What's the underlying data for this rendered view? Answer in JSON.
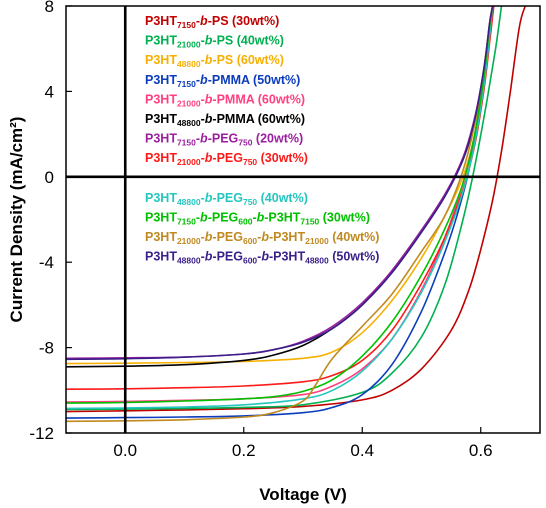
{
  "chart_data": {
    "type": "line",
    "title": "",
    "xlabel": "Voltage (V)",
    "ylabel": "Current Density (mA/cm²)",
    "xlim": [
      -0.1,
      0.7
    ],
    "ylim": [
      -12,
      8
    ],
    "x_ticks": [
      "0.0",
      "0.2",
      "0.4",
      "0.6"
    ],
    "y_ticks": [
      "-12",
      "-8",
      "-4",
      "0",
      "4",
      "8"
    ],
    "grid": false,
    "legend_position": "upper-left inside",
    "series": [
      {
        "name": "P3HT7150-b-PS (30wt%)",
        "color": "#c00000",
        "legend": [
          {
            "t": "P3HT"
          },
          {
            "t": "7150",
            "sub": true
          },
          {
            "t": "-"
          },
          {
            "t": "b",
            "i": true
          },
          {
            "t": "-PS (30wt%)"
          }
        ],
        "points": [
          [
            -0.1,
            -11.0
          ],
          [
            0.0,
            -10.96
          ],
          [
            0.1,
            -10.92
          ],
          [
            0.2,
            -10.86
          ],
          [
            0.3,
            -10.76
          ],
          [
            0.4,
            -10.45
          ],
          [
            0.45,
            -10.0
          ],
          [
            0.5,
            -9.0
          ],
          [
            0.55,
            -7.2
          ],
          [
            0.58,
            -5.3
          ],
          [
            0.6,
            -3.4
          ],
          [
            0.62,
            -1.1
          ],
          [
            0.635,
            1.2
          ],
          [
            0.65,
            4.0
          ],
          [
            0.665,
            7.0
          ],
          [
            0.675,
            8.0
          ]
        ]
      },
      {
        "name": "P3HT21000-b-PS (40wt%)",
        "color": "#00b050",
        "legend": [
          {
            "t": "P3HT"
          },
          {
            "t": "21000",
            "sub": true
          },
          {
            "t": "-"
          },
          {
            "t": "b",
            "i": true
          },
          {
            "t": "-PS (40wt%)"
          }
        ],
        "points": [
          [
            -0.1,
            -10.9
          ],
          [
            0.0,
            -10.88
          ],
          [
            0.1,
            -10.85
          ],
          [
            0.2,
            -10.8
          ],
          [
            0.3,
            -10.68
          ],
          [
            0.4,
            -10.1
          ],
          [
            0.45,
            -9.2
          ],
          [
            0.5,
            -7.5
          ],
          [
            0.54,
            -5.0
          ],
          [
            0.57,
            -2.0
          ],
          [
            0.59,
            0.5
          ],
          [
            0.61,
            3.5
          ],
          [
            0.625,
            6.0
          ],
          [
            0.635,
            8.0
          ]
        ]
      },
      {
        "name": "P3HT48800-b-PS (60wt%)",
        "color": "#f7b000",
        "legend": [
          {
            "t": "P3HT"
          },
          {
            "t": "48800",
            "sub": true
          },
          {
            "t": "-"
          },
          {
            "t": "b",
            "i": true
          },
          {
            "t": "-PS (60wt%)"
          }
        ],
        "points": [
          [
            -0.1,
            -8.75
          ],
          [
            0.0,
            -8.73
          ],
          [
            0.1,
            -8.7
          ],
          [
            0.2,
            -8.65
          ],
          [
            0.3,
            -8.5
          ],
          [
            0.35,
            -8.2
          ],
          [
            0.4,
            -7.3
          ],
          [
            0.45,
            -5.8
          ],
          [
            0.5,
            -3.8
          ],
          [
            0.54,
            -1.8
          ],
          [
            0.57,
            0.0
          ],
          [
            0.59,
            2.0
          ],
          [
            0.605,
            4.5
          ],
          [
            0.615,
            7.0
          ],
          [
            0.62,
            8.0
          ]
        ]
      },
      {
        "name": "P3HT7150-b-PMMA (50wt%)",
        "color": "#0b3cbd",
        "legend": [
          {
            "t": "P3HT"
          },
          {
            "t": "7150",
            "sub": true
          },
          {
            "t": "-"
          },
          {
            "t": "b",
            "i": true
          },
          {
            "t": "-PMMA (50wt%)"
          }
        ],
        "points": [
          [
            -0.1,
            -11.3
          ],
          [
            0.0,
            -11.28
          ],
          [
            0.1,
            -11.25
          ],
          [
            0.2,
            -11.2
          ],
          [
            0.3,
            -11.05
          ],
          [
            0.35,
            -10.8
          ],
          [
            0.4,
            -10.2
          ],
          [
            0.45,
            -8.8
          ],
          [
            0.5,
            -6.3
          ],
          [
            0.54,
            -3.5
          ],
          [
            0.56,
            -1.8
          ],
          [
            0.58,
            0.3
          ],
          [
            0.595,
            2.8
          ],
          [
            0.61,
            5.5
          ],
          [
            0.62,
            8.0
          ]
        ]
      },
      {
        "name": "P3HT21000-b-PMMA (60wt%)",
        "color": "#ff3f7f",
        "legend": [
          {
            "t": "P3HT"
          },
          {
            "t": "21000",
            "sub": true
          },
          {
            "t": "-"
          },
          {
            "t": "b",
            "i": true
          },
          {
            "t": "-PMMA (60wt%)"
          }
        ],
        "points": [
          [
            -0.1,
            -10.55
          ],
          [
            0.0,
            -10.52
          ],
          [
            0.1,
            -10.47
          ],
          [
            0.2,
            -10.4
          ],
          [
            0.3,
            -10.2
          ],
          [
            0.35,
            -9.8
          ],
          [
            0.4,
            -9.0
          ],
          [
            0.45,
            -7.6
          ],
          [
            0.5,
            -5.3
          ],
          [
            0.54,
            -2.8
          ],
          [
            0.57,
            -0.3
          ],
          [
            0.59,
            2.0
          ],
          [
            0.605,
            4.8
          ],
          [
            0.615,
            7.0
          ],
          [
            0.62,
            8.0
          ]
        ]
      },
      {
        "name": "P3HT48800-b-PMMA (60wt%)",
        "color": "#000000",
        "legend": [
          {
            "t": "P3HT"
          },
          {
            "t": "48800",
            "sub": true
          },
          {
            "t": "-"
          },
          {
            "t": "b",
            "i": true
          },
          {
            "t": "-PMMA (60wt%)"
          }
        ],
        "points": [
          [
            -0.1,
            -8.9
          ],
          [
            0.0,
            -8.87
          ],
          [
            0.1,
            -8.8
          ],
          [
            0.2,
            -8.6
          ],
          [
            0.25,
            -8.35
          ],
          [
            0.3,
            -7.9
          ],
          [
            0.35,
            -7.1
          ],
          [
            0.4,
            -6.0
          ],
          [
            0.45,
            -4.4
          ],
          [
            0.5,
            -2.5
          ],
          [
            0.54,
            -0.8
          ],
          [
            0.57,
            0.8
          ],
          [
            0.59,
            2.6
          ],
          [
            0.605,
            4.8
          ],
          [
            0.615,
            7.0
          ],
          [
            0.62,
            8.0
          ]
        ]
      },
      {
        "name": "P3HT7150-b-PEG750 (20wt%)",
        "color": "#9b1fa0",
        "legend": [
          {
            "t": "P3HT"
          },
          {
            "t": "7150",
            "sub": true
          },
          {
            "t": "-"
          },
          {
            "t": "b",
            "i": true
          },
          {
            "t": "-PEG"
          },
          {
            "t": "750",
            "sub": true
          },
          {
            "t": " (20wt%)"
          }
        ],
        "points": [
          [
            -0.1,
            -8.5
          ],
          [
            0.0,
            -8.48
          ],
          [
            0.1,
            -8.44
          ],
          [
            0.2,
            -8.3
          ],
          [
            0.25,
            -8.1
          ],
          [
            0.3,
            -7.7
          ],
          [
            0.35,
            -7.0
          ],
          [
            0.4,
            -5.9
          ],
          [
            0.45,
            -4.4
          ],
          [
            0.5,
            -2.5
          ],
          [
            0.54,
            -0.8
          ],
          [
            0.57,
            0.9
          ],
          [
            0.59,
            2.8
          ],
          [
            0.605,
            5.0
          ],
          [
            0.615,
            7.2
          ],
          [
            0.62,
            8.0
          ]
        ]
      },
      {
        "name": "P3HT21000-b-PEG750 (30wt%)",
        "color": "#ff1a1a",
        "legend": [
          {
            "t": "P3HT"
          },
          {
            "t": "21000",
            "sub": true
          },
          {
            "t": "-"
          },
          {
            "t": "b",
            "i": true
          },
          {
            "t": "-PEG"
          },
          {
            "t": "750",
            "sub": true
          },
          {
            "t": " (30wt%)"
          }
        ],
        "points": [
          [
            -0.1,
            -9.95
          ],
          [
            0.0,
            -9.93
          ],
          [
            0.1,
            -9.88
          ],
          [
            0.2,
            -9.8
          ],
          [
            0.3,
            -9.6
          ],
          [
            0.35,
            -9.3
          ],
          [
            0.4,
            -8.6
          ],
          [
            0.45,
            -7.2
          ],
          [
            0.5,
            -5.0
          ],
          [
            0.54,
            -2.8
          ],
          [
            0.57,
            -0.6
          ],
          [
            0.59,
            1.5
          ],
          [
            0.605,
            4.0
          ],
          [
            0.615,
            6.3
          ],
          [
            0.622,
            8.0
          ]
        ]
      },
      {
        "name": "P3HT48800-b-PEG750 (40wt%)",
        "color": "#26c6c0",
        "legend": [
          {
            "t": "P3HT"
          },
          {
            "t": "48800",
            "sub": true
          },
          {
            "t": "-"
          },
          {
            "t": "b",
            "i": true
          },
          {
            "t": "-PEG"
          },
          {
            "t": "750",
            "sub": true
          },
          {
            "t": " (40wt%)"
          }
        ],
        "points": [
          [
            -0.1,
            -10.85
          ],
          [
            0.0,
            -10.83
          ],
          [
            0.1,
            -10.78
          ],
          [
            0.2,
            -10.68
          ],
          [
            0.3,
            -10.4
          ],
          [
            0.35,
            -10.0
          ],
          [
            0.4,
            -9.1
          ],
          [
            0.45,
            -7.6
          ],
          [
            0.5,
            -5.4
          ],
          [
            0.54,
            -3.0
          ],
          [
            0.57,
            -0.7
          ],
          [
            0.59,
            1.6
          ],
          [
            0.605,
            4.2
          ],
          [
            0.615,
            6.6
          ],
          [
            0.62,
            8.0
          ]
        ]
      },
      {
        "name": "P3HT7150-b-PEG600-b-P3HT7150 (30wt%)",
        "color": "#00c000",
        "legend": [
          {
            "t": "P3HT"
          },
          {
            "t": "7150",
            "sub": true
          },
          {
            "t": "-"
          },
          {
            "t": "b",
            "i": true
          },
          {
            "t": "-PEG"
          },
          {
            "t": "600",
            "sub": true
          },
          {
            "t": "-"
          },
          {
            "t": "b",
            "i": true
          },
          {
            "t": "-P3HT"
          },
          {
            "t": "7150",
            "sub": true
          },
          {
            "t": " (30wt%)"
          }
        ],
        "points": [
          [
            -0.1,
            -10.6
          ],
          [
            0.0,
            -10.57
          ],
          [
            0.1,
            -10.5
          ],
          [
            0.2,
            -10.4
          ],
          [
            0.25,
            -10.3
          ],
          [
            0.3,
            -10.05
          ],
          [
            0.35,
            -9.5
          ],
          [
            0.4,
            -8.4
          ],
          [
            0.45,
            -6.8
          ],
          [
            0.5,
            -4.6
          ],
          [
            0.54,
            -2.4
          ],
          [
            0.57,
            -0.3
          ],
          [
            0.59,
            2.0
          ],
          [
            0.605,
            4.6
          ],
          [
            0.615,
            7.0
          ],
          [
            0.62,
            8.0
          ]
        ]
      },
      {
        "name": "P3HT21000-b-PEG600-b-P3HT21000 (40wt%)",
        "color": "#c08a20",
        "legend": [
          {
            "t": "P3HT"
          },
          {
            "t": "21000",
            "sub": true
          },
          {
            "t": "-"
          },
          {
            "t": "b",
            "i": true
          },
          {
            "t": "-PEG"
          },
          {
            "t": "600",
            "sub": true
          },
          {
            "t": "-"
          },
          {
            "t": "b",
            "i": true
          },
          {
            "t": "-P3HT"
          },
          {
            "t": "21000",
            "sub": true
          },
          {
            "t": " (40wt%)"
          }
        ],
        "points": [
          [
            -0.1,
            -11.45
          ],
          [
            0.0,
            -11.43
          ],
          [
            0.1,
            -11.38
          ],
          [
            0.2,
            -11.25
          ],
          [
            0.25,
            -11.05
          ],
          [
            0.3,
            -10.5
          ],
          [
            0.32,
            -9.8
          ],
          [
            0.35,
            -8.5
          ],
          [
            0.4,
            -7.0
          ],
          [
            0.45,
            -5.5
          ],
          [
            0.5,
            -3.5
          ],
          [
            0.54,
            -1.8
          ],
          [
            0.57,
            0.3
          ],
          [
            0.59,
            2.5
          ],
          [
            0.605,
            5.0
          ],
          [
            0.615,
            7.2
          ],
          [
            0.62,
            8.0
          ]
        ]
      },
      {
        "name": "P3HT48800-b-PEG600-b-P3HT48800 (50wt%)",
        "color": "#3a1f8a",
        "legend": [
          {
            "t": "P3HT"
          },
          {
            "t": "48800",
            "sub": true
          },
          {
            "t": "-"
          },
          {
            "t": "b",
            "i": true
          },
          {
            "t": "-PEG"
          },
          {
            "t": "600",
            "sub": true
          },
          {
            "t": "-"
          },
          {
            "t": "b",
            "i": true
          },
          {
            "t": "-P3HT"
          },
          {
            "t": "48800",
            "sub": true
          },
          {
            "t": " (50wt%)"
          }
        ],
        "points": [
          [
            -0.1,
            -8.55
          ],
          [
            0.0,
            -8.52
          ],
          [
            0.1,
            -8.45
          ],
          [
            0.2,
            -8.3
          ],
          [
            0.25,
            -8.1
          ],
          [
            0.3,
            -7.75
          ],
          [
            0.35,
            -7.1
          ],
          [
            0.4,
            -6.0
          ],
          [
            0.45,
            -4.5
          ],
          [
            0.5,
            -2.6
          ],
          [
            0.54,
            -0.9
          ],
          [
            0.57,
            0.8
          ],
          [
            0.59,
            2.7
          ],
          [
            0.605,
            5.0
          ],
          [
            0.615,
            7.2
          ],
          [
            0.62,
            8.0
          ]
        ]
      }
    ]
  }
}
